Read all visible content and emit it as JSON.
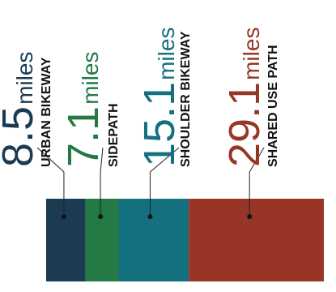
{
  "chart_data": {
    "type": "bar",
    "orientation": "stacked-horizontal",
    "unit": "miles",
    "segments": [
      {
        "category": "URBAN BIKEWAY",
        "value": 8.5,
        "value_label": "8.5",
        "color": "#1b3b53"
      },
      {
        "category": "SIDEPATH",
        "value": 7.1,
        "value_label": "7.1",
        "color": "#237a45"
      },
      {
        "category": "SHOULDER BIKEWAY",
        "value": 15.1,
        "value_label": "15.1",
        "color": "#14707f"
      },
      {
        "category": "SHARED USE PATH",
        "value": 29.1,
        "value_label": "29.1",
        "color": "#973626"
      }
    ]
  }
}
